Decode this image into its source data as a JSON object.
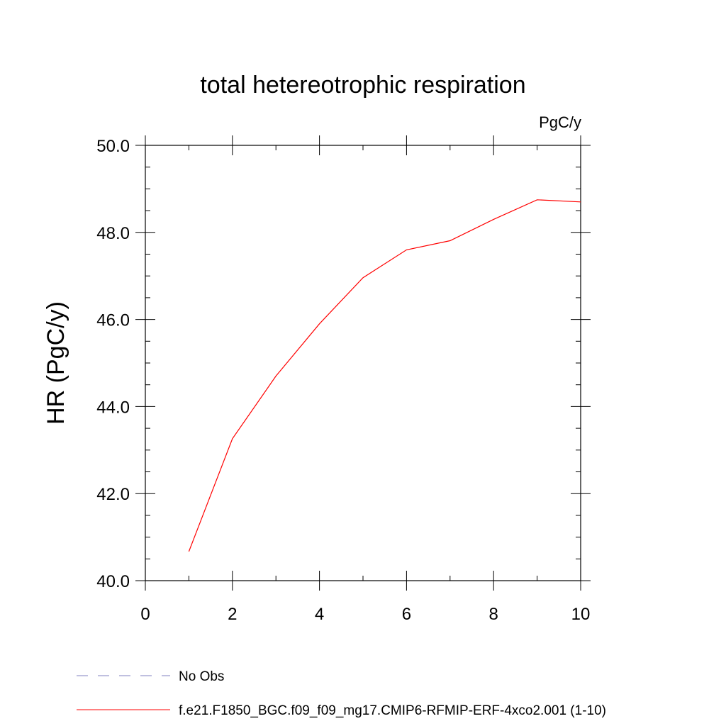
{
  "chart_data": {
    "type": "line",
    "title": "total hetereotrophic respiration",
    "units_label": "PgC/y",
    "xlabel": "",
    "ylabel": "HR  (PgC/y)",
    "xlim": [
      0,
      10
    ],
    "ylim": [
      40.0,
      50.0
    ],
    "x_ticks": [
      0,
      2,
      4,
      6,
      8,
      10
    ],
    "x_tick_labels": [
      "0",
      "2",
      "4",
      "6",
      "8",
      "10"
    ],
    "y_ticks": [
      40,
      42,
      44,
      46,
      48,
      50
    ],
    "y_tick_labels": [
      "40.0",
      "42.0",
      "44.0",
      "46.0",
      "48.0",
      "50.0"
    ],
    "y_minor_step": 0.5,
    "x_minor_step": 1,
    "grid": false,
    "legend_position": "bottom",
    "series": [
      {
        "name": "f.e21.F1850_BGC.f09_f09_mg17.CMIP6-RFMIP-ERF-4xco2.001 (1-10)",
        "color": "#ff0000",
        "x": [
          1,
          2,
          3,
          4,
          5,
          6,
          7,
          8,
          9,
          10
        ],
        "values": [
          40.67,
          43.26,
          44.7,
          45.9,
          46.96,
          47.6,
          47.81,
          48.3,
          48.75,
          48.7
        ]
      }
    ],
    "legend": [
      {
        "label": "No Obs",
        "color": "#8080c0",
        "style": "dashed"
      },
      {
        "label": "f.e21.F1850_BGC.f09_f09_mg17.CMIP6-RFMIP-ERF-4xco2.001 (1-10)",
        "color": "#ff0000",
        "style": "solid"
      }
    ]
  }
}
